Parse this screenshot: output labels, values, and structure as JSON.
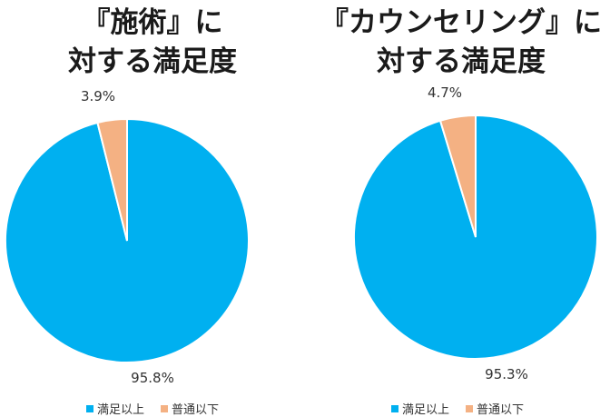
{
  "colors": {
    "satisfied": "#00b0f0",
    "average": "#f4b183"
  },
  "chart_data": [
    {
      "type": "pie",
      "title": "『施術』に対する満足度",
      "title_lines": [
        "『施術』に",
        "対する満足度"
      ],
      "labels": [
        "満足以上",
        "普通以下"
      ],
      "values": [
        95.8,
        3.9
      ],
      "value_labels": [
        "95.8%",
        "3.9%"
      ],
      "legend": [
        "満足以上",
        "普通以下"
      ],
      "legend_position": "bottom"
    },
    {
      "type": "pie",
      "title": "『カウンセリング』に対する満足度",
      "title_lines": [
        "『カウンセリング』に",
        "対する満足度"
      ],
      "labels": [
        "満足以上",
        "普通以下"
      ],
      "values": [
        95.3,
        4.7
      ],
      "value_labels": [
        "95.3%",
        "4.7%"
      ],
      "legend": [
        "満足以上",
        "普通以下"
      ],
      "legend_position": "bottom"
    }
  ]
}
